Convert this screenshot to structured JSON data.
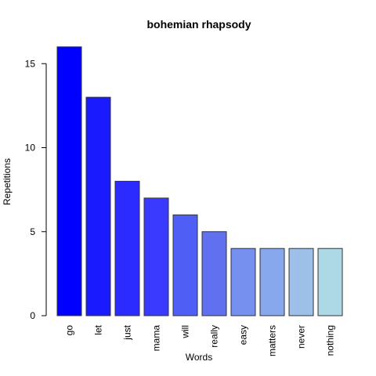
{
  "chart_data": {
    "type": "bar",
    "title": "bohemian rhapsody",
    "xlabel": "Words",
    "ylabel": "Repetitions",
    "categories": [
      "go",
      "let",
      "just",
      "mama",
      "will",
      "really",
      "easy",
      "matters",
      "never",
      "nothing"
    ],
    "values": [
      16,
      13,
      8,
      7,
      6,
      5,
      4,
      4,
      4,
      4
    ],
    "bar_colors": [
      "#0000ff",
      "#1a1aff",
      "#2b2bff",
      "#3a3aff",
      "#4f5ef5",
      "#6070ee",
      "#7590ee",
      "#88a8ee",
      "#9cc0e8",
      "#add8e6"
    ],
    "ylim": [
      0,
      16
    ],
    "yticks": [
      0,
      5,
      10,
      15
    ],
    "grid": false,
    "legend": "none"
  }
}
